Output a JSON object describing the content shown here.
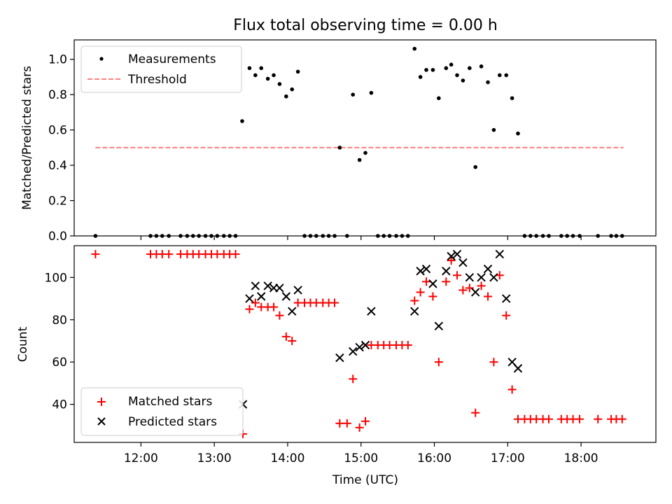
{
  "title": "Flux total observing time = 0.00 h",
  "chart_data": [
    {
      "type": "scatter",
      "ylabel": "Matched/Predicted stars",
      "xlim": [
        11.09,
        19.02
      ],
      "ylim": [
        0,
        1.11
      ],
      "yticks": [
        "0.0",
        "0.2",
        "0.4",
        "0.6",
        "0.8",
        "1.0"
      ],
      "ytick_values": [
        0,
        0.2,
        0.4,
        0.6,
        0.8,
        1.0
      ],
      "xtick_values": [
        12,
        13,
        14,
        15,
        16,
        17,
        18
      ],
      "legend": {
        "placement": "upper-left",
        "entries": [
          "Measurements",
          "Threshold"
        ]
      },
      "threshold": {
        "name": "Threshold",
        "value": 0.5,
        "x_range": [
          11.38,
          18.58
        ],
        "color": "#ff7f7f",
        "style": "dashed"
      },
      "series": [
        {
          "name": "Measurements",
          "color": "#000000",
          "marker": "dot",
          "points": [
            [
              11.38,
              0.0
            ],
            [
              12.13,
              0.0
            ],
            [
              12.21,
              0.0
            ],
            [
              12.29,
              0.0
            ],
            [
              12.38,
              0.0
            ],
            [
              12.54,
              0.0
            ],
            [
              12.63,
              0.0
            ],
            [
              12.71,
              0.0
            ],
            [
              12.79,
              0.0
            ],
            [
              12.88,
              0.0
            ],
            [
              12.96,
              0.0
            ],
            [
              13.04,
              0.0
            ],
            [
              13.13,
              0.0
            ],
            [
              13.21,
              0.0
            ],
            [
              13.29,
              0.0
            ],
            [
              13.38,
              0.65
            ],
            [
              13.48,
              0.95
            ],
            [
              13.56,
              0.91
            ],
            [
              13.64,
              0.95
            ],
            [
              13.73,
              0.89
            ],
            [
              13.81,
              0.91
            ],
            [
              13.89,
              0.86
            ],
            [
              13.98,
              0.79
            ],
            [
              14.06,
              0.83
            ],
            [
              14.14,
              0.93
            ],
            [
              14.23,
              0.0
            ],
            [
              14.31,
              0.0
            ],
            [
              14.39,
              0.0
            ],
            [
              14.48,
              0.0
            ],
            [
              14.56,
              0.0
            ],
            [
              14.64,
              0.0
            ],
            [
              14.71,
              0.5
            ],
            [
              14.81,
              0.0
            ],
            [
              14.89,
              0.8
            ],
            [
              14.98,
              0.43
            ],
            [
              15.06,
              0.47
            ],
            [
              15.14,
              0.81
            ],
            [
              15.23,
              0.0
            ],
            [
              15.31,
              0.0
            ],
            [
              15.39,
              0.0
            ],
            [
              15.48,
              0.0
            ],
            [
              15.56,
              0.0
            ],
            [
              15.64,
              0.0
            ],
            [
              15.73,
              1.06
            ],
            [
              15.81,
              0.9
            ],
            [
              15.89,
              0.94
            ],
            [
              15.98,
              0.94
            ],
            [
              16.06,
              0.78
            ],
            [
              16.16,
              0.95
            ],
            [
              16.23,
              0.97
            ],
            [
              16.31,
              0.91
            ],
            [
              16.39,
              0.88
            ],
            [
              16.48,
              0.95
            ],
            [
              16.56,
              0.39
            ],
            [
              16.64,
              0.96
            ],
            [
              16.73,
              0.87
            ],
            [
              16.81,
              0.6
            ],
            [
              16.89,
              0.91
            ],
            [
              16.98,
              0.91
            ],
            [
              17.06,
              0.78
            ],
            [
              17.14,
              0.58
            ],
            [
              17.23,
              0.0
            ],
            [
              17.31,
              0.0
            ],
            [
              17.39,
              0.0
            ],
            [
              17.48,
              0.0
            ],
            [
              17.56,
              0.0
            ],
            [
              17.73,
              0.0
            ],
            [
              17.81,
              0.0
            ],
            [
              17.89,
              0.0
            ],
            [
              17.98,
              0.0
            ],
            [
              18.23,
              0.0
            ],
            [
              18.41,
              0.0
            ],
            [
              18.48,
              0.0
            ],
            [
              18.56,
              0.0
            ]
          ]
        }
      ]
    },
    {
      "type": "scatter",
      "xlabel": "Time (UTC)",
      "ylabel": "Count",
      "xlim": [
        11.09,
        19.02
      ],
      "ylim": [
        22,
        115
      ],
      "yticks": [
        "40",
        "60",
        "80",
        "100"
      ],
      "ytick_values": [
        40,
        60,
        80,
        100
      ],
      "xticks": [
        "12:00",
        "13:00",
        "14:00",
        "15:00",
        "16:00",
        "17:00",
        "18:00"
      ],
      "xtick_values": [
        12,
        13,
        14,
        15,
        16,
        17,
        18
      ],
      "legend": {
        "placement": "lower-left",
        "entries": [
          "Matched stars",
          "Predicted stars"
        ]
      },
      "series": [
        {
          "name": "Matched stars",
          "color": "#ff0000",
          "marker": "plus",
          "points": [
            [
              11.38,
              111
            ],
            [
              12.13,
              111
            ],
            [
              12.21,
              111
            ],
            [
              12.29,
              111
            ],
            [
              12.38,
              111
            ],
            [
              12.54,
              111
            ],
            [
              12.63,
              111
            ],
            [
              12.71,
              111
            ],
            [
              12.79,
              111
            ],
            [
              12.88,
              111
            ],
            [
              12.96,
              111
            ],
            [
              13.04,
              111
            ],
            [
              13.13,
              111
            ],
            [
              13.21,
              111
            ],
            [
              13.29,
              111
            ],
            [
              13.39,
              26
            ],
            [
              13.48,
              85
            ],
            [
              13.56,
              88
            ],
            [
              13.64,
              86
            ],
            [
              13.73,
              86
            ],
            [
              13.81,
              86
            ],
            [
              13.89,
              82
            ],
            [
              13.98,
              72
            ],
            [
              14.06,
              70
            ],
            [
              14.14,
              88
            ],
            [
              14.23,
              88
            ],
            [
              14.31,
              88
            ],
            [
              14.39,
              88
            ],
            [
              14.48,
              88
            ],
            [
              14.56,
              88
            ],
            [
              14.64,
              88
            ],
            [
              14.71,
              31
            ],
            [
              14.81,
              31
            ],
            [
              14.89,
              52
            ],
            [
              14.98,
              29
            ],
            [
              15.06,
              32
            ],
            [
              15.14,
              68
            ],
            [
              15.23,
              68
            ],
            [
              15.31,
              68
            ],
            [
              15.39,
              68
            ],
            [
              15.48,
              68
            ],
            [
              15.56,
              68
            ],
            [
              15.64,
              68
            ],
            [
              15.73,
              89
            ],
            [
              15.81,
              93
            ],
            [
              15.89,
              98
            ],
            [
              15.98,
              91
            ],
            [
              16.06,
              60
            ],
            [
              16.16,
              98
            ],
            [
              16.23,
              108
            ],
            [
              16.31,
              101
            ],
            [
              16.39,
              94
            ],
            [
              16.48,
              95
            ],
            [
              16.56,
              36
            ],
            [
              16.64,
              96
            ],
            [
              16.73,
              91
            ],
            [
              16.81,
              60
            ],
            [
              16.89,
              101
            ],
            [
              16.98,
              82
            ],
            [
              17.06,
              47
            ],
            [
              17.14,
              33
            ],
            [
              17.23,
              33
            ],
            [
              17.31,
              33
            ],
            [
              17.39,
              33
            ],
            [
              17.48,
              33
            ],
            [
              17.56,
              33
            ],
            [
              17.73,
              33
            ],
            [
              17.81,
              33
            ],
            [
              17.89,
              33
            ],
            [
              17.98,
              33
            ],
            [
              18.23,
              33
            ],
            [
              18.41,
              33
            ],
            [
              18.48,
              33
            ],
            [
              18.56,
              33
            ]
          ]
        },
        {
          "name": "Predicted stars",
          "color": "#000000",
          "marker": "x",
          "points": [
            [
              13.39,
              40
            ],
            [
              13.48,
              90
            ],
            [
              13.56,
              96
            ],
            [
              13.64,
              91
            ],
            [
              13.73,
              96
            ],
            [
              13.81,
              95
            ],
            [
              13.89,
              95
            ],
            [
              13.98,
              91
            ],
            [
              14.06,
              84
            ],
            [
              14.14,
              94
            ],
            [
              14.71,
              62
            ],
            [
              14.89,
              65
            ],
            [
              14.98,
              67
            ],
            [
              15.06,
              68
            ],
            [
              15.14,
              84
            ],
            [
              15.73,
              84
            ],
            [
              15.81,
              103
            ],
            [
              15.89,
              104
            ],
            [
              15.98,
              97
            ],
            [
              16.06,
              77
            ],
            [
              16.16,
              103
            ],
            [
              16.23,
              110
            ],
            [
              16.31,
              111
            ],
            [
              16.39,
              107
            ],
            [
              16.48,
              100
            ],
            [
              16.56,
              93
            ],
            [
              16.64,
              100
            ],
            [
              16.73,
              104
            ],
            [
              16.81,
              100
            ],
            [
              16.89,
              111
            ],
            [
              16.98,
              90
            ],
            [
              17.06,
              60
            ],
            [
              17.14,
              57
            ]
          ]
        }
      ]
    }
  ]
}
